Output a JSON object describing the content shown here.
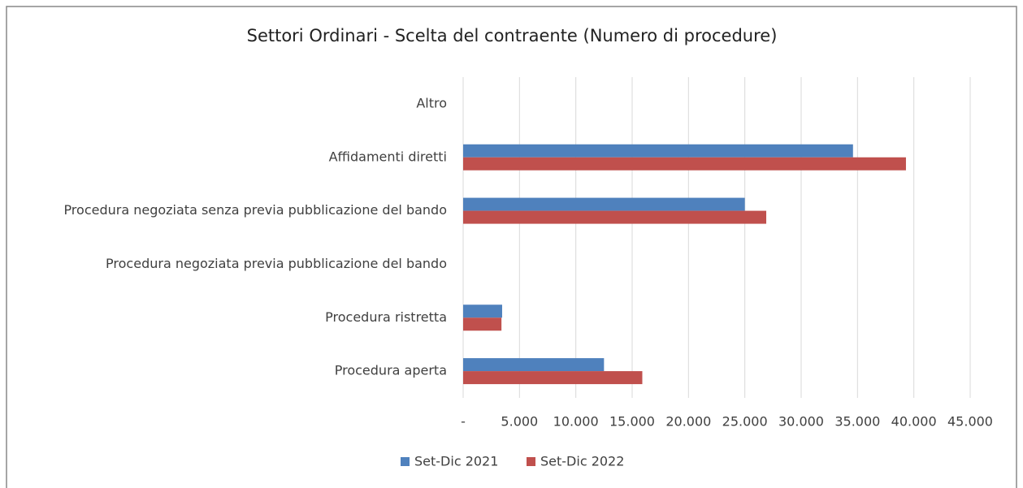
{
  "chart_data": {
    "type": "barh",
    "title": "Settori Ordinari - Scelta del contraente (Numero di procedure)",
    "categories": [
      "Altro",
      "Affidamenti diretti",
      "Procedura negoziata senza previa pubblicazione del bando",
      "Procedura negoziata previa pubblicazione del bando",
      "Procedura ristretta",
      "Procedura aperta"
    ],
    "series": [
      {
        "name": "Set-Dic 2021",
        "color": "#4f81bd",
        "values": [
          0,
          34600,
          25000,
          0,
          3460,
          12500
        ]
      },
      {
        "name": "Set-Dic 2022",
        "color": "#c0504d",
        "values": [
          0,
          39300,
          26900,
          0,
          3400,
          15900
        ]
      }
    ],
    "xlim": [
      0,
      45000
    ],
    "xticks": [
      {
        "value": 0,
        "label": "-"
      },
      {
        "value": 5000,
        "label": "5.000"
      },
      {
        "value": 10000,
        "label": "10.000"
      },
      {
        "value": 15000,
        "label": "15.000"
      },
      {
        "value": 20000,
        "label": "20.000"
      },
      {
        "value": 25000,
        "label": "25.000"
      },
      {
        "value": 30000,
        "label": "30.000"
      },
      {
        "value": 35000,
        "label": "35.000"
      },
      {
        "value": 40000,
        "label": "40.000"
      },
      {
        "value": 45000,
        "label": "45.000"
      }
    ],
    "grid": true,
    "legend": "bottom"
  }
}
